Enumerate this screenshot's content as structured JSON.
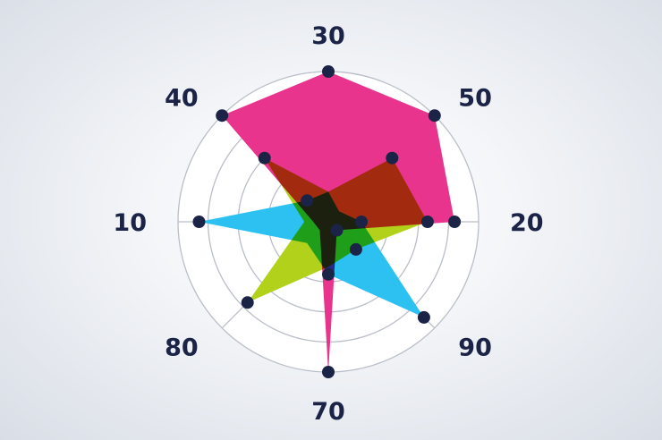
{
  "chart_data": {
    "type": "radar",
    "axes": [
      "30",
      "50",
      "20",
      "90",
      "70",
      "80",
      "10",
      "40"
    ],
    "rmax": 5,
    "rings": 5,
    "grid": true,
    "series": [
      {
        "color": "#e8348d",
        "values": [
          5,
          5,
          4.2,
          0.4,
          5,
          0.4,
          0.5,
          5
        ]
      },
      {
        "color": "#2cc1f1",
        "values": [
          1,
          0.5,
          1.1,
          4.5,
          1.75,
          1,
          4.3,
          1
        ]
      },
      {
        "color": "#b2d11b",
        "values": [
          1,
          3,
          3.3,
          1.3,
          1.5,
          3.8,
          0.8,
          3
        ]
      }
    ],
    "dots": [
      {
        "axis": 0,
        "value": 5
      },
      {
        "axis": 1,
        "value": 5
      },
      {
        "axis": 2,
        "value": 4.2
      },
      {
        "axis": 3,
        "value": 4.5
      },
      {
        "axis": 4,
        "value": 5
      },
      {
        "axis": 5,
        "value": 3.8
      },
      {
        "axis": 6,
        "value": 4.3
      },
      {
        "axis": 7,
        "value": 5
      },
      {
        "axis": 1,
        "value": 3
      },
      {
        "axis": 7,
        "value": 3
      },
      {
        "axis": 2,
        "value": 3.3
      },
      {
        "axis": 4,
        "value": 1.75
      },
      {
        "axis": 3,
        "value": 1.3
      },
      {
        "axis": 7,
        "value": 1
      },
      {
        "axis": 2,
        "value": 1.1
      },
      {
        "axis": 3,
        "value": 0.4
      }
    ],
    "colors": {
      "grid": "#b9bec8",
      "dot": "#1b2347",
      "label": "#1b2347",
      "overlap": "#383a1e"
    }
  }
}
